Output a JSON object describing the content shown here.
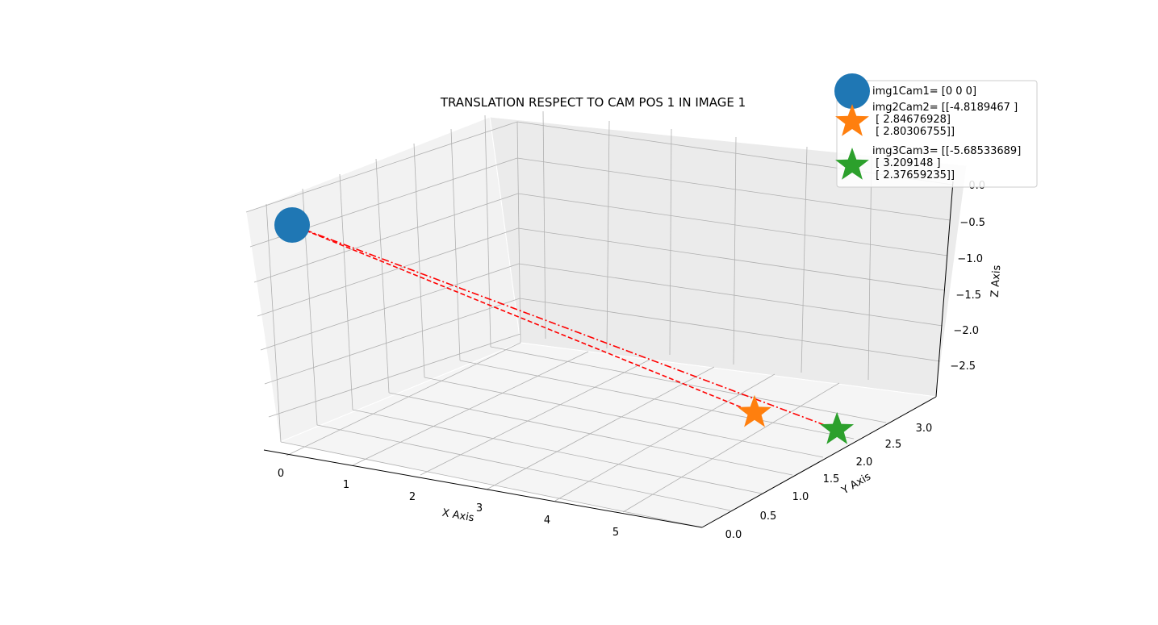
{
  "chart_data": {
    "type": "scatter",
    "projection": "3d",
    "title": "TRANSLATION RESPECT TO CAM POS 1 IN IMAGE 1",
    "xlabel": "X Axis",
    "ylabel": "Y Axis",
    "zlabel": "Z Axis",
    "xticks": [
      "0",
      "1",
      "2",
      "3",
      "4",
      "5"
    ],
    "yticks": [
      "0.0",
      "0.5",
      "1.0",
      "1.5",
      "2.0",
      "2.5",
      "3.0"
    ],
    "zticks": [
      "0.0",
      "−0.5",
      "−1.0",
      "−1.5",
      "−2.0",
      "−2.5"
    ],
    "grid": true,
    "legend_position": "top-right",
    "series": [
      {
        "name": "img1Cam1",
        "legend_lines": [
          "img1Cam1= [0 0 0]"
        ],
        "marker": "circle",
        "color": "#1f77b4",
        "x": 0,
        "y": 0,
        "z": 0
      },
      {
        "name": "img2Cam2",
        "legend_lines": [
          "img2Cam2= [[-4.8189467 ]",
          " [ 2.84676928]",
          " [ 2.80306755]]"
        ],
        "marker": "star",
        "color": "#ff7f0e",
        "x": 4.8189467,
        "y": 2.84676928,
        "z": -2.80306755
      },
      {
        "name": "img3Cam3",
        "legend_lines": [
          "img3Cam3= [[-5.68533689]",
          " [ 3.209148  ]",
          " [ 2.37659235]]"
        ],
        "marker": "star",
        "color": "#2ca02c",
        "x": 5.68533689,
        "y": 3.209148,
        "z": -2.37659235
      }
    ],
    "lines": [
      {
        "from": "img1Cam1",
        "to": "img2Cam2",
        "style": "dashed",
        "color": "#ff0000"
      },
      {
        "from": "img1Cam1",
        "to": "img3Cam3",
        "style": "dashdot",
        "color": "#ff0000"
      }
    ]
  }
}
